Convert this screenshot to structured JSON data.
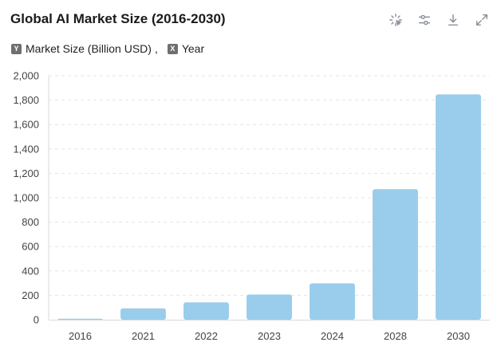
{
  "header": {
    "title": "Global AI Market Size (2016-2030)"
  },
  "toolbar": {
    "icons": [
      "sparkle-icon",
      "filter-sliders-icon",
      "download-icon",
      "expand-icon"
    ]
  },
  "axis_legend": {
    "y_badge": "Y",
    "y_label": "Market Size (Billion USD)",
    "separator": ",",
    "x_badge": "X",
    "x_label": "Year"
  },
  "colors": {
    "bar": "#99cdeb",
    "grid": "#e6e6e6",
    "axis": "#d9d9d9"
  },
  "chart_data": {
    "type": "bar",
    "title": "Global AI Market Size (2016-2030)",
    "xlabel": "Year",
    "ylabel": "Market Size (Billion USD)",
    "categories": [
      "2016",
      "2021",
      "2022",
      "2023",
      "2024",
      "2028",
      "2030"
    ],
    "values": [
      8,
      93,
      142,
      207,
      298,
      1070,
      1847
    ],
    "ylim": [
      0,
      2000
    ],
    "yticks": [
      0,
      200,
      400,
      600,
      800,
      1000,
      1200,
      1400,
      1600,
      1800,
      2000
    ],
    "ytick_labels": [
      "0",
      "200",
      "400",
      "600",
      "800",
      "1,000",
      "1,200",
      "1,400",
      "1,600",
      "1,800",
      "2,000"
    ],
    "grid": true
  }
}
